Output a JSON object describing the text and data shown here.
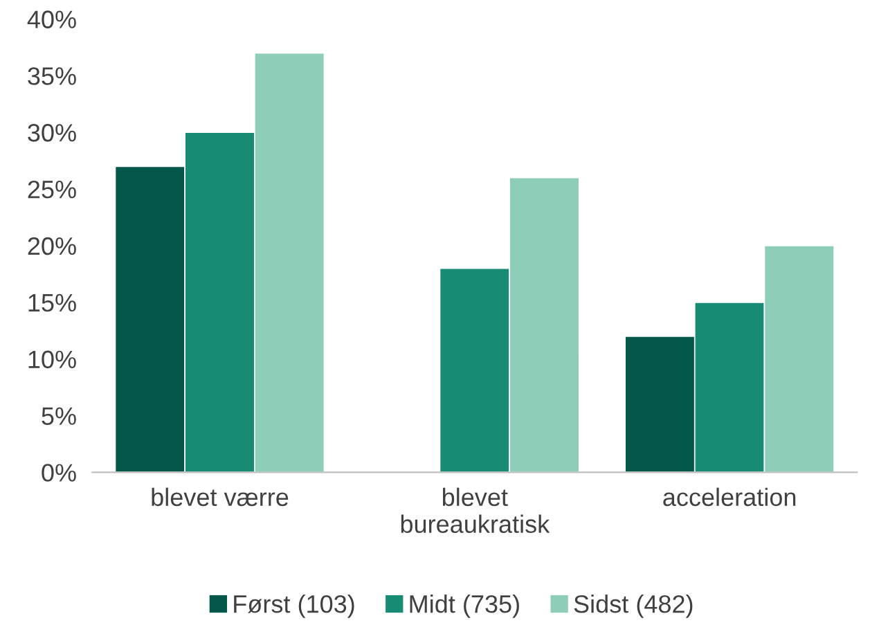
{
  "chart_data": {
    "type": "bar",
    "categories": [
      "blevet værre",
      "blevet\nbureaukratisk",
      "acceleration"
    ],
    "series": [
      {
        "name": "Først (103)",
        "color": "#02574a",
        "values": [
          27,
          null,
          12
        ]
      },
      {
        "name": "Midt (735)",
        "color": "#178b74",
        "values": [
          30,
          18,
          15
        ]
      },
      {
        "name": "Sidst (482)",
        "color": "#8ecdb7",
        "values": [
          37,
          26,
          20
        ]
      }
    ],
    "ylim": [
      0,
      40
    ],
    "yticks": [
      {
        "value": 0,
        "label": "0%"
      },
      {
        "value": 5,
        "label": "5%"
      },
      {
        "value": 10,
        "label": "10%"
      },
      {
        "value": 15,
        "label": "15%"
      },
      {
        "value": 20,
        "label": "20%"
      },
      {
        "value": 25,
        "label": "25%"
      },
      {
        "value": 30,
        "label": "30%"
      },
      {
        "value": 35,
        "label": "35%"
      },
      {
        "value": 40,
        "label": "40%"
      }
    ],
    "grid": false,
    "legend": "bottom"
  }
}
